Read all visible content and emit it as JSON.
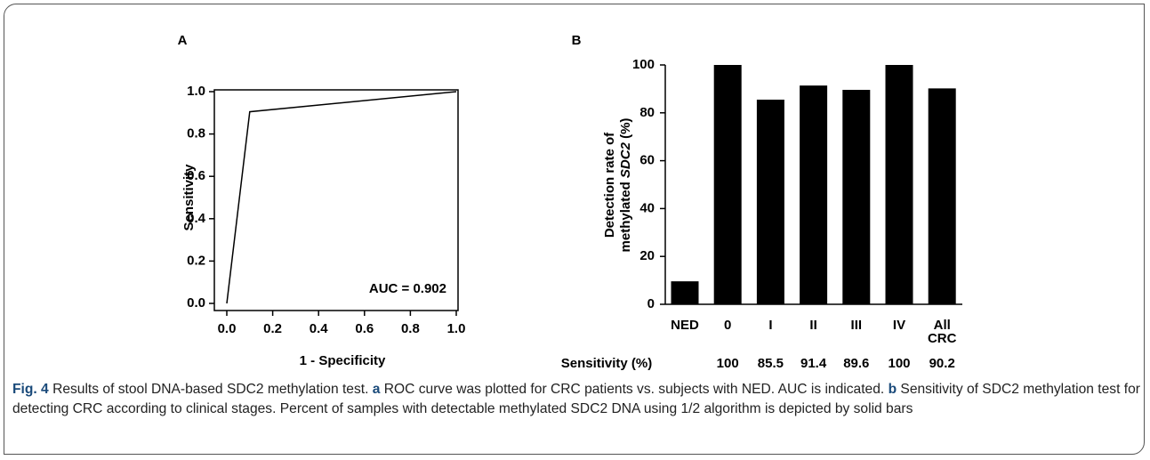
{
  "chart_data": [
    {
      "type": "line",
      "panel_label": "A",
      "y_label": "Sensitivity",
      "x_label": "1 - Specificity",
      "x": [
        0,
        0.1,
        1
      ],
      "values": [
        0,
        0.905,
        1
      ],
      "color": "#000000",
      "xlim": [
        0,
        1
      ],
      "ylim": [
        0,
        1
      ],
      "xticks": [
        {
          "value": 0,
          "label": "0.0"
        },
        0.2,
        0.4,
        0.6,
        0.8,
        {
          "value": 1,
          "label": "1.0"
        }
      ],
      "yticks": [
        {
          "value": 0,
          "label": "0.0"
        },
        0.2,
        0.4,
        0.6,
        0.8,
        {
          "value": 1,
          "label": "1.0"
        }
      ],
      "annotation": "AUC = 0.902"
    },
    {
      "type": "bar",
      "panel_label": "B",
      "y_label": {
        "line1": "Detection rate of",
        "line2": [
          {
            "text": "methylated "
          },
          {
            "text": "SDC2",
            "italic": true
          },
          {
            "text": " (%)"
          }
        ]
      },
      "categories": [
        "NED",
        "0",
        "I",
        "II",
        "III",
        "IV",
        "All CRC"
      ],
      "values": [
        9.6,
        100,
        85.5,
        91.4,
        89.6,
        100,
        90.2
      ],
      "color": "#000000",
      "ylim": [
        0,
        100
      ],
      "yticks": [
        0,
        20,
        40,
        60,
        80,
        100
      ],
      "sensitivity": {
        "label": "Sensitivity (%)",
        "values": [
          null,
          100,
          85.5,
          91.4,
          89.6,
          100,
          90.2
        ]
      }
    }
  ],
  "caption": [
    {
      "text": "Fig. 4",
      "bold": true
    },
    {
      "text": " Results of stool DNA-based SDC2 methylation test. "
    },
    {
      "text": "a",
      "bold": true
    },
    {
      "text": " ROC curve was plotted for CRC patients vs. subjects with NED. AUC is indicated. "
    },
    {
      "text": "b",
      "bold": true
    },
    {
      "text": " Sensitivity of SDC2 methylation test for detecting CRC according to clinical stages. Percent of samples with detectable methylated SDC2 DNA using 1/2 algorithm is depicted by solid bars"
    }
  ]
}
